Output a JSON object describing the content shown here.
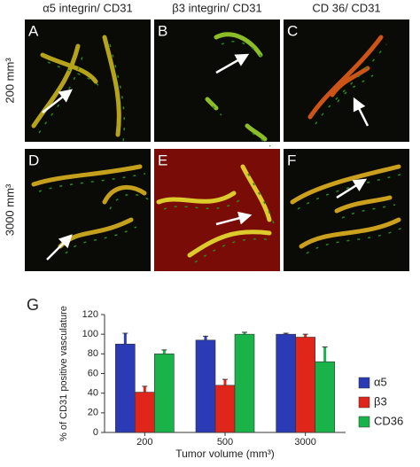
{
  "figure": {
    "columns": [
      "α5 integrin/ CD31",
      "β3 integrin/ CD31",
      "CD 36/ CD31"
    ],
    "rows": [
      "200 mm³",
      "3000 mm³"
    ],
    "panels": [
      "A",
      "B",
      "C",
      "D",
      "E",
      "F"
    ],
    "chart_label": "G"
  },
  "chart_data": {
    "type": "bar",
    "y_label": "% of CD31 positive vasculature",
    "x_label": "Tumor volume (mm³)",
    "categories": [
      "200",
      "500",
      "3000"
    ],
    "series": [
      {
        "name": "α5",
        "color": "#2a3bb5",
        "values": [
          90,
          94,
          100
        ],
        "errors": [
          11,
          4,
          1
        ]
      },
      {
        "name": "β3",
        "color": "#e0251b",
        "values": [
          41,
          48,
          97
        ],
        "errors": [
          6,
          6,
          3
        ]
      },
      {
        "name": "CD36",
        "color": "#19b34a",
        "values": [
          80,
          100,
          72
        ],
        "errors": [
          4,
          2,
          15
        ]
      }
    ],
    "ylim": [
      0,
      120
    ],
    "yticks": [
      0,
      20,
      40,
      60,
      80,
      100,
      120
    ],
    "legend": "right"
  }
}
